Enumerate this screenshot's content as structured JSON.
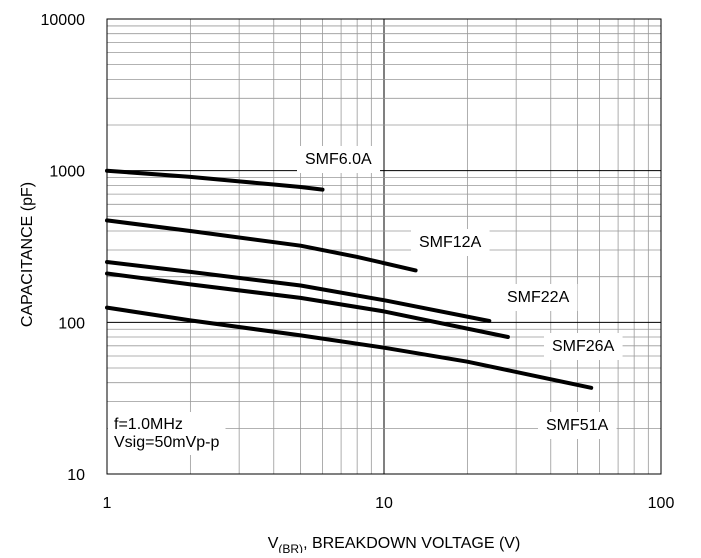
{
  "chart_data": {
    "type": "line",
    "title": "",
    "xlabel": "V(BR), BREAKDOWN VOLTAGE (V)",
    "xlabel_main": "V",
    "xlabel_sub": "(BR)",
    "xlabel_rest": ", BREAKDOWN VOLTAGE (V)",
    "ylabel": "CAPACITANCE (pF)",
    "xscale": "log",
    "yscale": "log",
    "xlim": [
      1,
      100
    ],
    "ylim": [
      10,
      10000
    ],
    "grid": true,
    "x_ticks": [
      "1",
      "10",
      "100"
    ],
    "y_ticks": [
      "10",
      "100",
      "1000",
      "10000"
    ],
    "series": [
      {
        "name": "SMF6.0A",
        "x": [
          1,
          2,
          3,
          4,
          5,
          6
        ],
        "y": [
          1000,
          910,
          850,
          810,
          780,
          750
        ]
      },
      {
        "name": "SMF12A",
        "x": [
          1,
          2,
          5,
          8,
          13
        ],
        "y": [
          470,
          400,
          320,
          270,
          220
        ]
      },
      {
        "name": "SMF22A",
        "x": [
          1,
          2,
          5,
          10,
          24
        ],
        "y": [
          250,
          215,
          175,
          140,
          102
        ]
      },
      {
        "name": "SMF26A",
        "x": [
          1,
          2,
          5,
          10,
          28
        ],
        "y": [
          210,
          178,
          145,
          118,
          80
        ]
      },
      {
        "name": "SMF51A",
        "x": [
          1,
          2,
          5,
          10,
          20,
          56
        ],
        "y": [
          125,
          103,
          82,
          68,
          55,
          37
        ]
      }
    ],
    "annotations": [
      "f=1.0MHz",
      "Vsig=50mVp-p"
    ]
  }
}
